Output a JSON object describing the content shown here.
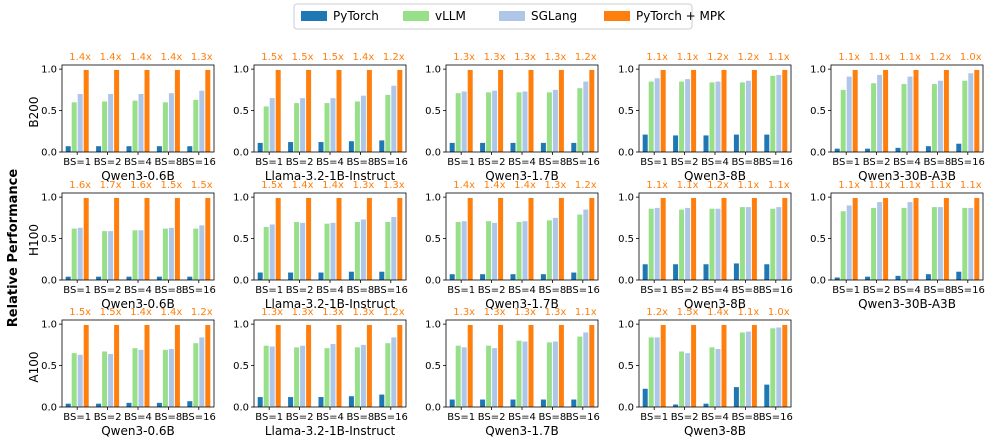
{
  "chart_data": {
    "type": "bar",
    "ylabel": "Relative Performance",
    "ylim": [
      0,
      1.05
    ],
    "yticks": [
      "0.0",
      "0.5",
      "1.0"
    ],
    "categories": [
      "BS=1",
      "BS=2",
      "BS=4",
      "BS=8",
      "BS=16"
    ],
    "series_names": [
      "PyTorch",
      "vLLM",
      "SGLang",
      "PyTorch + MPK"
    ],
    "colors": {
      "PyTorch": "#1f77b4",
      "vLLM": "#98df8a",
      "SGLang": "#aec7e8",
      "PyTorch + MPK": "#ff7f0e"
    },
    "annotation_color": "#ff7f0e",
    "legend": {
      "position": "top-center"
    },
    "rows": [
      {
        "gpu": "B200",
        "panels": [
          {
            "model": "Qwen3-0.6B",
            "pytorch": [
              0.07,
              0.07,
              0.07,
              0.07,
              0.07
            ],
            "vllm": [
              0.6,
              0.61,
              0.62,
              0.6,
              0.63
            ],
            "sglang": [
              0.7,
              0.7,
              0.7,
              0.71,
              0.74
            ],
            "mpk": [
              0.99,
              0.99,
              0.99,
              0.99,
              0.99
            ],
            "speedup": [
              "1.4x",
              "1.4x",
              "1.4x",
              "1.4x",
              "1.3x"
            ]
          },
          {
            "model": "Llama-3.2-1B-Instruct",
            "pytorch": [
              0.11,
              0.12,
              0.12,
              0.13,
              0.14
            ],
            "vllm": [
              0.55,
              0.59,
              0.59,
              0.61,
              0.69
            ],
            "sglang": [
              0.65,
              0.65,
              0.65,
              0.68,
              0.8
            ],
            "mpk": [
              0.99,
              0.99,
              0.99,
              0.99,
              0.99
            ],
            "speedup": [
              "1.5x",
              "1.5x",
              "1.5x",
              "1.4x",
              "1.2x"
            ]
          },
          {
            "model": "Qwen3-1.7B",
            "pytorch": [
              0.11,
              0.11,
              0.11,
              0.11,
              0.11
            ],
            "vllm": [
              0.71,
              0.72,
              0.72,
              0.72,
              0.77
            ],
            "sglang": [
              0.73,
              0.74,
              0.73,
              0.75,
              0.85
            ],
            "mpk": [
              0.99,
              0.99,
              0.99,
              0.99,
              0.99
            ],
            "speedup": [
              "1.3x",
              "1.3x",
              "1.3x",
              "1.3x",
              "1.2x"
            ]
          },
          {
            "model": "Qwen3-8B",
            "pytorch": [
              0.21,
              0.2,
              0.2,
              0.21,
              0.21
            ],
            "vllm": [
              0.85,
              0.85,
              0.84,
              0.84,
              0.92
            ],
            "sglang": [
              0.89,
              0.88,
              0.85,
              0.86,
              0.93
            ],
            "mpk": [
              0.99,
              0.99,
              0.99,
              0.99,
              0.99
            ],
            "speedup": [
              "1.1x",
              "1.1x",
              "1.2x",
              "1.2x",
              "1.1x"
            ]
          },
          {
            "model": "Qwen3-30B-A3B",
            "pytorch": [
              0.04,
              0.04,
              0.05,
              0.07,
              0.1
            ],
            "vllm": [
              0.75,
              0.83,
              0.82,
              0.82,
              0.86
            ],
            "sglang": [
              0.91,
              0.93,
              0.91,
              0.86,
              0.95
            ],
            "mpk": [
              0.99,
              0.99,
              0.99,
              0.99,
              0.99
            ],
            "speedup": [
              "1.1x",
              "1.1x",
              "1.1x",
              "1.2x",
              "1.0x"
            ]
          }
        ]
      },
      {
        "gpu": "H100",
        "panels": [
          {
            "model": "Qwen3-0.6B",
            "pytorch": [
              0.04,
              0.04,
              0.04,
              0.04,
              0.04
            ],
            "vllm": [
              0.62,
              0.59,
              0.6,
              0.62,
              0.62
            ],
            "sglang": [
              0.63,
              0.59,
              0.6,
              0.63,
              0.66
            ],
            "mpk": [
              0.99,
              0.99,
              0.99,
              0.99,
              0.99
            ],
            "speedup": [
              "1.6x",
              "1.7x",
              "1.6x",
              "1.5x",
              "1.5x"
            ]
          },
          {
            "model": "Llama-3.2-1B-Instruct",
            "pytorch": [
              0.09,
              0.09,
              0.09,
              0.1,
              0.1
            ],
            "vllm": [
              0.64,
              0.7,
              0.68,
              0.7,
              0.7
            ],
            "sglang": [
              0.67,
              0.69,
              0.69,
              0.73,
              0.76
            ],
            "mpk": [
              0.99,
              0.99,
              0.99,
              0.99,
              0.99
            ],
            "speedup": [
              "1.5x",
              "1.4x",
              "1.4x",
              "1.3x",
              "1.3x"
            ]
          },
          {
            "model": "Qwen3-1.7B",
            "pytorch": [
              0.07,
              0.07,
              0.07,
              0.07,
              0.09
            ],
            "vllm": [
              0.7,
              0.71,
              0.7,
              0.72,
              0.79
            ],
            "sglang": [
              0.71,
              0.69,
              0.71,
              0.75,
              0.85
            ],
            "mpk": [
              0.99,
              0.99,
              0.99,
              0.99,
              0.99
            ],
            "speedup": [
              "1.4x",
              "1.4x",
              "1.4x",
              "1.3x",
              "1.2x"
            ]
          },
          {
            "model": "Qwen3-8B",
            "pytorch": [
              0.19,
              0.19,
              0.19,
              0.2,
              0.19
            ],
            "vllm": [
              0.86,
              0.85,
              0.86,
              0.88,
              0.86
            ],
            "sglang": [
              0.87,
              0.87,
              0.86,
              0.88,
              0.88
            ],
            "mpk": [
              0.99,
              0.99,
              0.99,
              0.99,
              0.99
            ],
            "speedup": [
              "1.1x",
              "1.1x",
              "1.2x",
              "1.1x",
              "1.1x"
            ]
          },
          {
            "model": "Qwen3-30B-A3B",
            "pytorch": [
              0.03,
              0.04,
              0.05,
              0.07,
              0.1
            ],
            "vllm": [
              0.83,
              0.87,
              0.87,
              0.88,
              0.87
            ],
            "sglang": [
              0.9,
              0.94,
              0.94,
              0.88,
              0.87
            ],
            "mpk": [
              0.99,
              0.99,
              0.99,
              0.99,
              0.99
            ],
            "speedup": [
              "1.1x",
              "1.1x",
              "1.1x",
              "1.1x",
              "1.1x"
            ]
          }
        ]
      },
      {
        "gpu": "A100",
        "panels": [
          {
            "model": "Qwen3-0.6B",
            "pytorch": [
              0.04,
              0.04,
              0.05,
              0.05,
              0.07
            ],
            "vllm": [
              0.65,
              0.67,
              0.71,
              0.69,
              0.77
            ],
            "sglang": [
              0.63,
              0.64,
              0.69,
              0.7,
              0.84
            ],
            "mpk": [
              0.99,
              0.99,
              0.99,
              0.99,
              0.99
            ],
            "speedup": [
              "1.5x",
              "1.5x",
              "1.4x",
              "1.4x",
              "1.2x"
            ]
          },
          {
            "model": "Llama-3.2-1B-Instruct",
            "pytorch": [
              0.12,
              0.12,
              0.12,
              0.13,
              0.15
            ],
            "vllm": [
              0.74,
              0.72,
              0.71,
              0.72,
              0.77
            ],
            "sglang": [
              0.73,
              0.74,
              0.76,
              0.75,
              0.84
            ],
            "mpk": [
              0.99,
              0.99,
              0.99,
              0.99,
              0.99
            ],
            "speedup": [
              "1.3x",
              "1.3x",
              "1.3x",
              "1.3x",
              "1.2x"
            ]
          },
          {
            "model": "Qwen3-1.7B",
            "pytorch": [
              0.09,
              0.09,
              0.09,
              0.09,
              0.09
            ],
            "vllm": [
              0.74,
              0.74,
              0.8,
              0.78,
              0.85
            ],
            "sglang": [
              0.72,
              0.71,
              0.79,
              0.79,
              0.9
            ],
            "mpk": [
              0.99,
              0.99,
              0.99,
              0.99,
              0.99
            ],
            "speedup": [
              "1.3x",
              "1.3x",
              "1.3x",
              "1.3x",
              "1.1x"
            ]
          },
          {
            "model": "Qwen3-8B",
            "pytorch": [
              0.22,
              0.03,
              0.04,
              0.24,
              0.27
            ],
            "vllm": [
              0.84,
              0.67,
              0.72,
              0.9,
              0.95
            ],
            "sglang": [
              0.84,
              0.65,
              0.7,
              0.91,
              0.96
            ],
            "mpk": [
              0.99,
              0.99,
              0.99,
              0.99,
              0.99
            ],
            "speedup": [
              "1.2x",
              "1.5x",
              "1.4x",
              "1.1x",
              "1.0x"
            ]
          }
        ]
      }
    ]
  }
}
